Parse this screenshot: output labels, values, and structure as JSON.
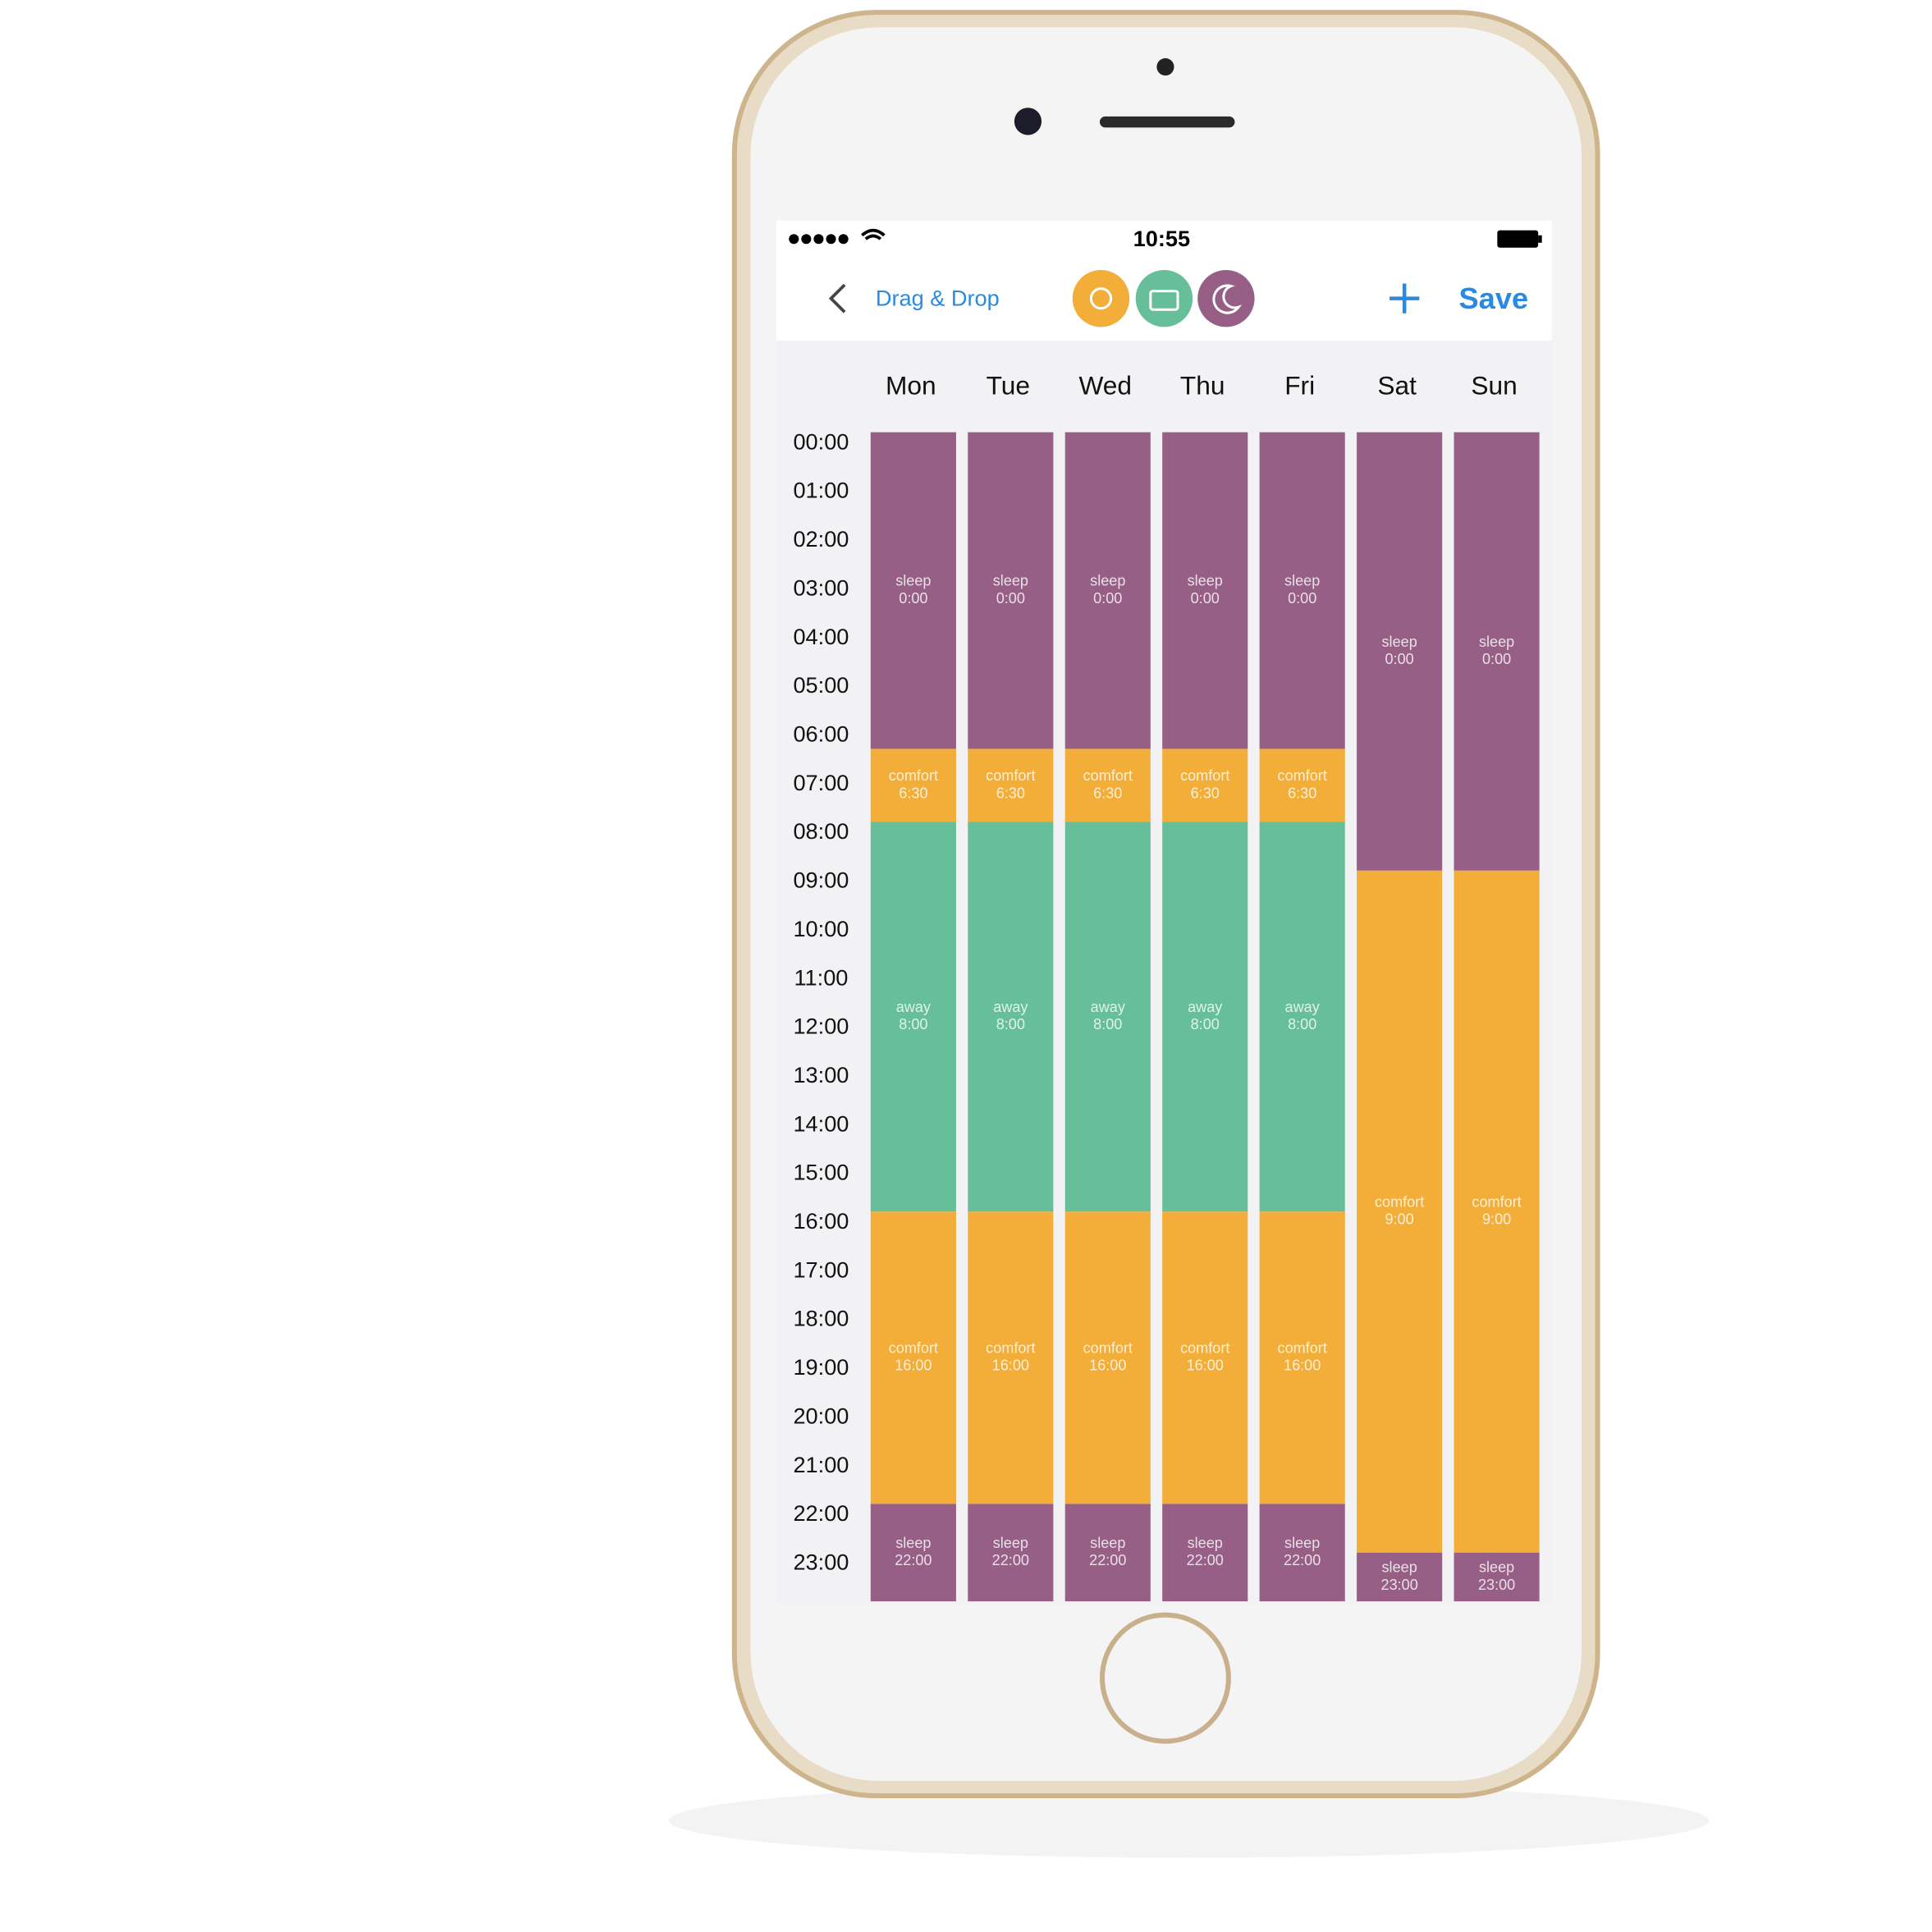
{
  "status_bar": {
    "time": "10:55"
  },
  "nav": {
    "back_label": "Drag & Drop",
    "save_label": "Save"
  },
  "days": [
    "Mon",
    "Tue",
    "Wed",
    "Thu",
    "Fri",
    "Sat",
    "Sun"
  ],
  "hours": [
    "00:00",
    "01:00",
    "02:00",
    "03:00",
    "04:00",
    "05:00",
    "06:00",
    "07:00",
    "08:00",
    "09:00",
    "10:00",
    "11:00",
    "12:00",
    "13:00",
    "14:00",
    "15:00",
    "16:00",
    "17:00",
    "18:00",
    "19:00",
    "20:00",
    "21:00",
    "22:00",
    "23:00"
  ],
  "schedule": [
    [
      {
        "mode": "sleep",
        "start": "0:00",
        "color": "#975f86"
      },
      {
        "mode": "comfort",
        "start": "6:30",
        "color": "#f2ae38"
      },
      {
        "mode": "away",
        "start": "8:00",
        "color": "#66bf99"
      },
      {
        "mode": "comfort",
        "start": "16:00",
        "color": "#f2ae38"
      },
      {
        "mode": "sleep",
        "start": "22:00",
        "color": "#975f86"
      }
    ],
    [
      {
        "mode": "sleep",
        "start": "0:00",
        "color": "#975f86"
      },
      {
        "mode": "comfort",
        "start": "6:30",
        "color": "#f2ae38"
      },
      {
        "mode": "away",
        "start": "8:00",
        "color": "#66bf99"
      },
      {
        "mode": "comfort",
        "start": "16:00",
        "color": "#f2ae38"
      },
      {
        "mode": "sleep",
        "start": "22:00",
        "color": "#975f86"
      }
    ],
    [
      {
        "mode": "sleep",
        "start": "0:00",
        "color": "#975f86"
      },
      {
        "mode": "comfort",
        "start": "6:30",
        "color": "#f2ae38"
      },
      {
        "mode": "away",
        "start": "8:00",
        "color": "#66bf99"
      },
      {
        "mode": "comfort",
        "start": "16:00",
        "color": "#f2ae38"
      },
      {
        "mode": "sleep",
        "start": "22:00",
        "color": "#975f86"
      }
    ],
    [
      {
        "mode": "sleep",
        "start": "0:00",
        "color": "#975f86"
      },
      {
        "mode": "comfort",
        "start": "6:30",
        "color": "#f2ae38"
      },
      {
        "mode": "away",
        "start": "8:00",
        "color": "#66bf99"
      },
      {
        "mode": "comfort",
        "start": "16:00",
        "color": "#f2ae38"
      },
      {
        "mode": "sleep",
        "start": "22:00",
        "color": "#975f86"
      }
    ],
    [
      {
        "mode": "sleep",
        "start": "0:00",
        "color": "#975f86"
      },
      {
        "mode": "comfort",
        "start": "6:30",
        "color": "#f2ae38"
      },
      {
        "mode": "away",
        "start": "8:00",
        "color": "#66bf99"
      },
      {
        "mode": "comfort",
        "start": "16:00",
        "color": "#f2ae38"
      },
      {
        "mode": "sleep",
        "start": "22:00",
        "color": "#975f86"
      }
    ],
    [
      {
        "mode": "sleep",
        "start": "0:00",
        "color": "#975f86"
      },
      {
        "mode": "comfort",
        "start": "9:00",
        "color": "#f2ae38"
      },
      {
        "mode": "sleep",
        "start": "23:00",
        "color": "#975f86"
      }
    ],
    [
      {
        "mode": "sleep",
        "start": "0:00",
        "color": "#975f86"
      },
      {
        "mode": "comfort",
        "start": "9:00",
        "color": "#f2ae38"
      },
      {
        "mode": "sleep",
        "start": "23:00",
        "color": "#975f86"
      }
    ]
  ]
}
